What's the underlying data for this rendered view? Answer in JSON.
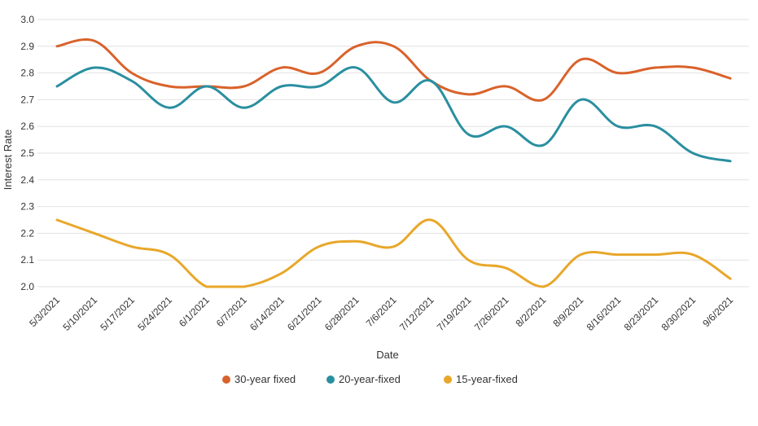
{
  "chart_data": {
    "type": "line",
    "title": "",
    "xlabel": "Date",
    "ylabel": "Interest Rate",
    "ylim": [
      2.0,
      3.0
    ],
    "yticks": [
      "3.0",
      "2.9",
      "2.8",
      "2.7",
      "2.6",
      "2.5",
      "2.4",
      "2.3",
      "2.2",
      "2.1",
      "2.0"
    ],
    "grid": true,
    "legend_position": "bottom",
    "categories": [
      "5/3/2021",
      "5/10/2021",
      "5/17/2021",
      "5/24/2021",
      "6/1/2021",
      "6/7/2021",
      "6/14/2021",
      "6/21/2021",
      "6/28/2021",
      "7/6/2021",
      "7/12/2021",
      "7/19/2021",
      "7/26/2021",
      "8/2/2021",
      "8/9/2021",
      "8/16/2021",
      "8/23/2021",
      "8/30/2021",
      "9/6/2021"
    ],
    "series": [
      {
        "name": "30-year fixed",
        "color": "#d9622b",
        "values": [
          2.9,
          2.92,
          2.8,
          2.75,
          2.75,
          2.75,
          2.82,
          2.8,
          2.9,
          2.9,
          2.77,
          2.72,
          2.75,
          2.7,
          2.85,
          2.8,
          2.82,
          2.82,
          2.78
        ]
      },
      {
        "name": "20-year-fixed",
        "color": "#2a8fa0",
        "values": [
          2.75,
          2.82,
          2.77,
          2.67,
          2.75,
          2.67,
          2.75,
          2.75,
          2.82,
          2.69,
          2.77,
          2.57,
          2.6,
          2.53,
          2.7,
          2.6,
          2.6,
          2.5,
          2.47
        ]
      },
      {
        "name": "15-year-fixed",
        "color": "#e8a72a",
        "values": [
          2.25,
          2.2,
          2.15,
          2.12,
          2.0,
          2.0,
          2.05,
          2.15,
          2.17,
          2.15,
          2.25,
          2.1,
          2.07,
          2.0,
          2.12,
          2.12,
          2.12,
          2.12,
          2.03
        ]
      }
    ]
  }
}
